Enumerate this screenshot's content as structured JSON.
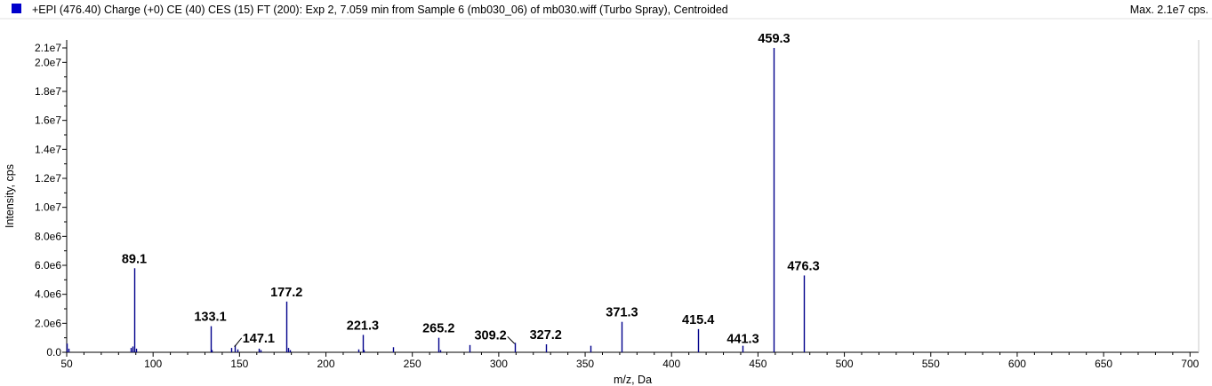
{
  "header": {
    "title": "+EPI (476.40) Charge (+0) CE (40) CES (15) FT (200): Exp 2, 7.059 min from Sample 6 (mb030_06) of mb030.wiff (Turbo Spray), Centroided",
    "max_label": "Max. 2.1e7 cps.",
    "legend_color": "#0000cc"
  },
  "chart_data": {
    "type": "bar",
    "title": "+EPI (476.40) Charge (+0) CE (40) CES (15) FT (200): Exp 2, 7.059 min from Sample 6 (mb030_06) of mb030.wiff (Turbo Spray), Centroided",
    "xlabel": "m/z, Da",
    "ylabel": "Intensity, cps",
    "xlim": [
      50,
      705
    ],
    "ylim": [
      0,
      21000000
    ],
    "grid": false,
    "bar_color": "#00008b",
    "x_ticks": [
      50,
      100,
      150,
      200,
      250,
      300,
      350,
      400,
      450,
      500,
      550,
      600,
      650,
      700
    ],
    "x_tick_labels": [
      "50",
      "100",
      "150",
      "200",
      "250",
      "300",
      "350",
      "400",
      "450",
      "500",
      "550",
      "600",
      "650",
      "700"
    ],
    "y_ticks": [
      0,
      2000000,
      4000000,
      6000000,
      8000000,
      10000000,
      12000000,
      14000000,
      16000000,
      18000000,
      20000000,
      21000000
    ],
    "y_tick_labels": [
      "0.0",
      "2.0e6",
      "4.0e6",
      "6.0e6",
      "8.0e6",
      "1.0e7",
      "1.2e7",
      "1.4e7",
      "1.6e7",
      "1.8e7",
      "2.0e7",
      "2.1e7"
    ],
    "peaks": [
      {
        "mz": 50.2,
        "intensity": 600000
      },
      {
        "mz": 51.0,
        "intensity": 250000
      },
      {
        "mz": 87.0,
        "intensity": 300000
      },
      {
        "mz": 88.0,
        "intensity": 400000
      },
      {
        "mz": 89.1,
        "intensity": 5800000
      },
      {
        "mz": 90.0,
        "intensity": 250000
      },
      {
        "mz": 133.1,
        "intensity": 1800000
      },
      {
        "mz": 134.0,
        "intensity": 150000
      },
      {
        "mz": 145.0,
        "intensity": 300000
      },
      {
        "mz": 147.1,
        "intensity": 500000
      },
      {
        "mz": 149.0,
        "intensity": 200000
      },
      {
        "mz": 161.0,
        "intensity": 250000
      },
      {
        "mz": 162.0,
        "intensity": 150000
      },
      {
        "mz": 177.2,
        "intensity": 3500000
      },
      {
        "mz": 178.0,
        "intensity": 300000
      },
      {
        "mz": 179.0,
        "intensity": 150000
      },
      {
        "mz": 219.0,
        "intensity": 200000
      },
      {
        "mz": 221.3,
        "intensity": 1200000
      },
      {
        "mz": 222.0,
        "intensity": 150000
      },
      {
        "mz": 239.0,
        "intensity": 350000
      },
      {
        "mz": 265.2,
        "intensity": 1000000
      },
      {
        "mz": 266.0,
        "intensity": 150000
      },
      {
        "mz": 283.0,
        "intensity": 500000
      },
      {
        "mz": 309.2,
        "intensity": 650000
      },
      {
        "mz": 327.2,
        "intensity": 550000
      },
      {
        "mz": 353.0,
        "intensity": 450000
      },
      {
        "mz": 371.3,
        "intensity": 2100000
      },
      {
        "mz": 415.4,
        "intensity": 1600000
      },
      {
        "mz": 441.3,
        "intensity": 450000
      },
      {
        "mz": 459.3,
        "intensity": 21000000
      },
      {
        "mz": 476.3,
        "intensity": 5300000
      }
    ],
    "labels": [
      {
        "text": "89.1",
        "mz": 89.1,
        "intensity": 5800000
      },
      {
        "text": "133.1",
        "mz": 133.1,
        "intensity": 1800000
      },
      {
        "text": "147.1",
        "mz": 147.1,
        "intensity": 500000
      },
      {
        "text": "177.2",
        "mz": 177.2,
        "intensity": 3500000
      },
      {
        "text": "221.3",
        "mz": 221.3,
        "intensity": 1200000
      },
      {
        "text": "265.2",
        "mz": 265.2,
        "intensity": 1000000
      },
      {
        "text": "309.2",
        "mz": 309.2,
        "intensity": 650000
      },
      {
        "text": "327.2",
        "mz": 327.2,
        "intensity": 550000
      },
      {
        "text": "371.3",
        "mz": 371.3,
        "intensity": 2100000
      },
      {
        "text": "415.4",
        "mz": 415.4,
        "intensity": 1600000
      },
      {
        "text": "441.3",
        "mz": 441.3,
        "intensity": 450000
      },
      {
        "text": "459.3",
        "mz": 459.3,
        "intensity": 21000000
      },
      {
        "text": "476.3",
        "mz": 476.3,
        "intensity": 5300000
      }
    ]
  }
}
